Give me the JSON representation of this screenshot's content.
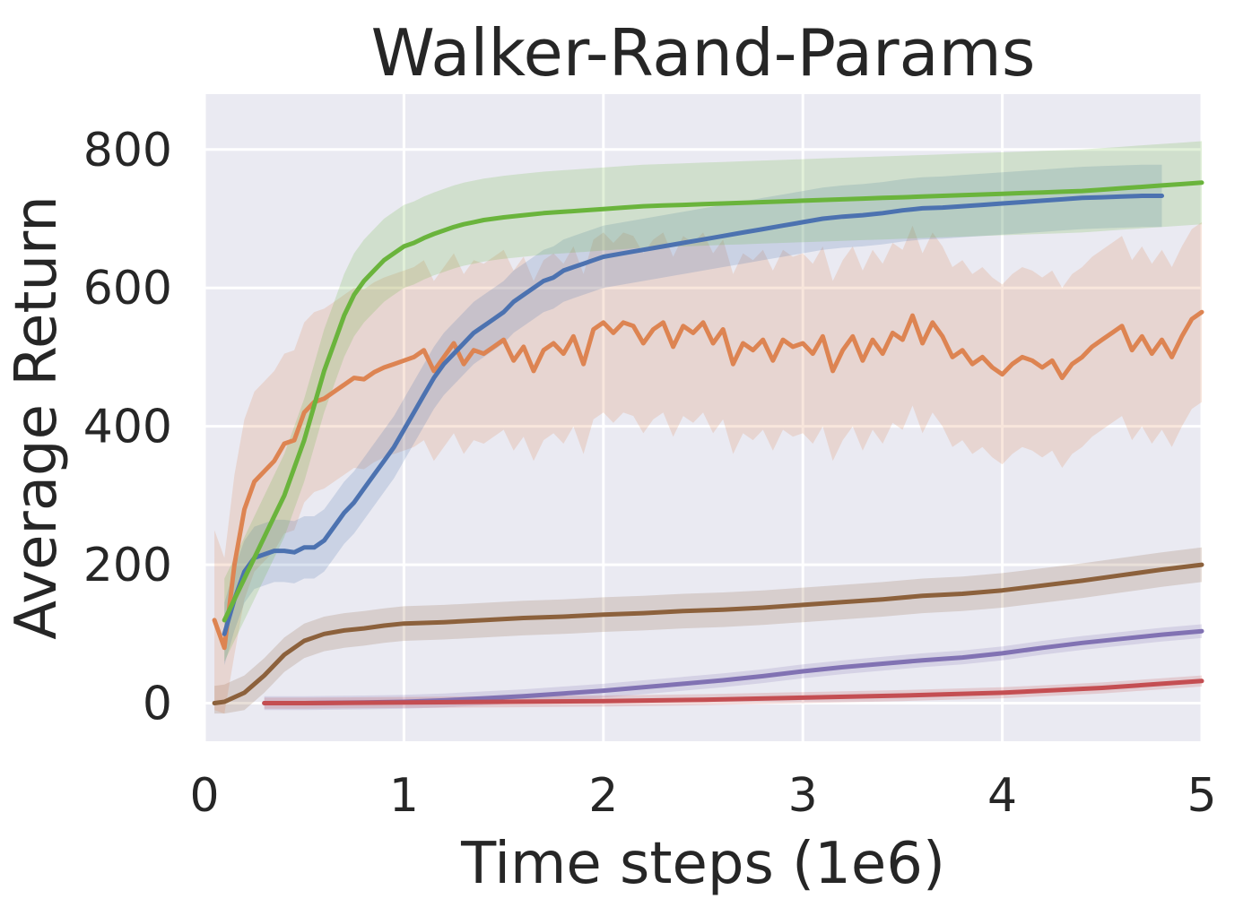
{
  "chart_data": {
    "type": "line",
    "title": "Walker-Rand-Params",
    "xlabel": "Time steps (1e6)",
    "ylabel": "Average Return",
    "xlim": [
      0,
      5
    ],
    "ylim": [
      -55,
      880
    ],
    "xticks": [
      0,
      1,
      2,
      3,
      4,
      5
    ],
    "yticks": [
      0,
      200,
      400,
      600,
      800
    ],
    "grid": true,
    "series": [
      {
        "color": "#8c613c",
        "shade": 25,
        "x": [
          0.05,
          0.1,
          0.2,
          0.3,
          0.4,
          0.5,
          0.6,
          0.7,
          0.8,
          0.9,
          1.0,
          1.2,
          1.4,
          1.6,
          1.8,
          2.0,
          2.2,
          2.4,
          2.6,
          2.8,
          3.0,
          3.2,
          3.4,
          3.6,
          3.8,
          4.0,
          4.2,
          4.4,
          4.6,
          4.8,
          5.0
        ],
        "y": [
          0,
          2,
          15,
          40,
          70,
          90,
          100,
          105,
          108,
          112,
          115,
          117,
          120,
          123,
          125,
          128,
          130,
          133,
          135,
          138,
          142,
          146,
          150,
          155,
          158,
          163,
          170,
          177,
          185,
          193,
          200
        ]
      },
      {
        "color": "#8172b3",
        "shade": 10,
        "x": [
          0.3,
          0.5,
          0.8,
          1.0,
          1.2,
          1.4,
          1.6,
          1.8,
          2.0,
          2.2,
          2.4,
          2.6,
          2.8,
          3.0,
          3.2,
          3.4,
          3.6,
          3.8,
          4.0,
          4.2,
          4.4,
          4.6,
          4.8,
          5.0
        ],
        "y": [
          0,
          0,
          1,
          2,
          4,
          7,
          10,
          14,
          18,
          23,
          28,
          33,
          39,
          46,
          52,
          57,
          62,
          66,
          72,
          80,
          87,
          93,
          99,
          104
        ]
      },
      {
        "color": "#c44e52",
        "shade": 8,
        "x": [
          0.3,
          0.5,
          1.0,
          1.5,
          2.0,
          2.5,
          3.0,
          3.5,
          4.0,
          4.5,
          5.0
        ],
        "y": [
          0,
          0,
          1,
          2,
          3,
          5,
          8,
          11,
          15,
          22,
          32
        ]
      },
      {
        "color": "#dd8452",
        "shade": 130,
        "x": [
          0.05,
          0.1,
          0.15,
          0.2,
          0.25,
          0.3,
          0.35,
          0.4,
          0.45,
          0.5,
          0.55,
          0.6,
          0.65,
          0.7,
          0.75,
          0.8,
          0.85,
          0.9,
          0.95,
          1.0,
          1.05,
          1.1,
          1.15,
          1.2,
          1.25,
          1.3,
          1.35,
          1.4,
          1.45,
          1.5,
          1.55,
          1.6,
          1.65,
          1.7,
          1.75,
          1.8,
          1.85,
          1.9,
          1.95,
          2.0,
          2.05,
          2.1,
          2.15,
          2.2,
          2.25,
          2.3,
          2.35,
          2.4,
          2.45,
          2.5,
          2.55,
          2.6,
          2.65,
          2.7,
          2.75,
          2.8,
          2.85,
          2.9,
          2.95,
          3.0,
          3.05,
          3.1,
          3.15,
          3.2,
          3.25,
          3.3,
          3.35,
          3.4,
          3.45,
          3.5,
          3.55,
          3.6,
          3.65,
          3.7,
          3.75,
          3.8,
          3.85,
          3.9,
          3.95,
          4.0,
          4.05,
          4.1,
          4.15,
          4.2,
          4.25,
          4.3,
          4.35,
          4.4,
          4.45,
          4.5,
          4.55,
          4.6,
          4.65,
          4.7,
          4.75,
          4.8,
          4.85,
          4.9,
          4.95,
          5.0
        ],
        "y": [
          120,
          80,
          200,
          280,
          320,
          335,
          350,
          375,
          380,
          420,
          435,
          440,
          450,
          460,
          470,
          468,
          478,
          485,
          490,
          495,
          500,
          510,
          480,
          500,
          520,
          490,
          510,
          505,
          515,
          525,
          495,
          515,
          480,
          510,
          520,
          505,
          530,
          490,
          540,
          550,
          535,
          550,
          545,
          520,
          540,
          550,
          515,
          545,
          535,
          550,
          520,
          540,
          490,
          520,
          510,
          525,
          495,
          525,
          515,
          520,
          505,
          530,
          480,
          510,
          530,
          495,
          525,
          505,
          535,
          525,
          560,
          520,
          550,
          530,
          500,
          510,
          490,
          500,
          485,
          475,
          490,
          500,
          495,
          485,
          495,
          470,
          490,
          500,
          515,
          525,
          535,
          545,
          510,
          530,
          505,
          525,
          500,
          530,
          555,
          565
        ]
      },
      {
        "color": "#4c72b0",
        "shade": 45,
        "x": [
          0.1,
          0.15,
          0.2,
          0.25,
          0.3,
          0.35,
          0.4,
          0.45,
          0.5,
          0.55,
          0.6,
          0.65,
          0.7,
          0.75,
          0.8,
          0.85,
          0.9,
          0.95,
          1.0,
          1.05,
          1.1,
          1.15,
          1.2,
          1.25,
          1.3,
          1.35,
          1.4,
          1.45,
          1.5,
          1.55,
          1.6,
          1.65,
          1.7,
          1.75,
          1.8,
          1.85,
          1.9,
          1.95,
          2.0,
          2.1,
          2.2,
          2.3,
          2.4,
          2.5,
          2.6,
          2.7,
          2.8,
          2.9,
          3.0,
          3.1,
          3.2,
          3.3,
          3.4,
          3.5,
          3.6,
          3.7,
          3.8,
          3.9,
          4.0,
          4.1,
          4.2,
          4.3,
          4.4,
          4.5,
          4.6,
          4.7,
          4.8
        ],
        "y": [
          100,
          150,
          190,
          210,
          215,
          220,
          220,
          218,
          225,
          225,
          235,
          255,
          275,
          290,
          310,
          330,
          350,
          370,
          395,
          420,
          445,
          470,
          490,
          505,
          520,
          535,
          545,
          555,
          565,
          580,
          590,
          600,
          610,
          615,
          625,
          630,
          635,
          640,
          645,
          650,
          655,
          660,
          665,
          670,
          675,
          680,
          685,
          690,
          695,
          700,
          703,
          705,
          708,
          712,
          715,
          716,
          718,
          720,
          722,
          724,
          726,
          728,
          730,
          731,
          732,
          733,
          733
        ]
      },
      {
        "color": "#6ab43c",
        "shade": 60,
        "x": [
          0.1,
          0.15,
          0.2,
          0.25,
          0.3,
          0.35,
          0.4,
          0.45,
          0.5,
          0.55,
          0.6,
          0.65,
          0.7,
          0.75,
          0.8,
          0.85,
          0.9,
          0.95,
          1.0,
          1.05,
          1.1,
          1.15,
          1.2,
          1.25,
          1.3,
          1.35,
          1.4,
          1.45,
          1.5,
          1.6,
          1.7,
          1.8,
          1.9,
          2.0,
          2.1,
          2.2,
          2.3,
          2.4,
          2.5,
          2.6,
          2.7,
          2.8,
          2.9,
          3.0,
          3.1,
          3.2,
          3.3,
          3.4,
          3.5,
          3.6,
          3.7,
          3.8,
          3.9,
          4.0,
          4.1,
          4.2,
          4.3,
          4.4,
          4.5,
          4.6,
          4.7,
          4.8,
          4.9,
          5.0
        ],
        "y": [
          120,
          150,
          180,
          210,
          240,
          270,
          300,
          340,
          380,
          430,
          480,
          520,
          560,
          590,
          610,
          625,
          640,
          650,
          660,
          665,
          672,
          678,
          683,
          688,
          692,
          695,
          698,
          700,
          702,
          705,
          708,
          710,
          712,
          714,
          716,
          718,
          719,
          720,
          721,
          722,
          723,
          724,
          725,
          726,
          727,
          728,
          729,
          730,
          731,
          732,
          733,
          734,
          735,
          736,
          737,
          738,
          739,
          740,
          742,
          744,
          746,
          748,
          750,
          752
        ]
      }
    ]
  }
}
